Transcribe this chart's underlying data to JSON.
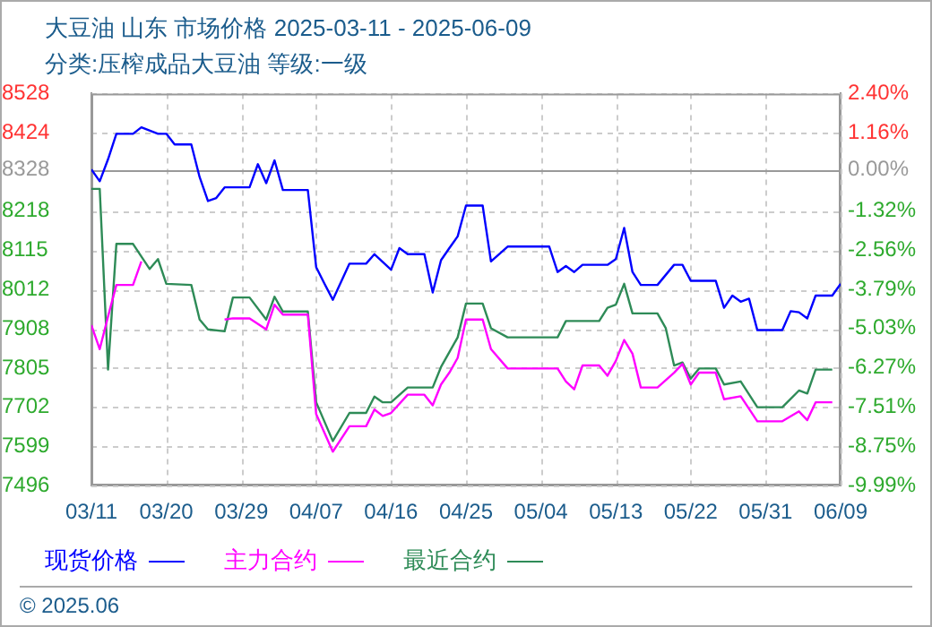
{
  "chart_data": {
    "type": "line",
    "title": "大豆油 山东 市场价格 2025-03-11 - 2025-06-09",
    "subtitle": "分类:压榨成品大豆油 等级:一级",
    "xlim": [
      "2025-03-11",
      "2025-06-09"
    ],
    "xticks": [
      {
        "value": "2025-03-11",
        "label": "03/11"
      },
      {
        "value": "2025-03-20",
        "label": "03/20"
      },
      {
        "value": "2025-03-29",
        "label": "03/29"
      },
      {
        "value": "2025-04-07",
        "label": "04/07"
      },
      {
        "value": "2025-04-16",
        "label": "04/16"
      },
      {
        "value": "2025-04-25",
        "label": "04/25"
      },
      {
        "value": "2025-05-04",
        "label": "05/04"
      },
      {
        "value": "2025-05-13",
        "label": "05/13"
      },
      {
        "value": "2025-05-22",
        "label": "05/22"
      },
      {
        "value": "2025-05-31",
        "label": "05/31"
      },
      {
        "value": "2025-06-09",
        "label": "06/09"
      }
    ],
    "ylim": [
      7496,
      8528
    ],
    "yticks": [
      7496,
      7599,
      7702,
      7805,
      7908,
      8012,
      8115,
      8218,
      8328,
      8424,
      8528
    ],
    "y2lim": [
      -9.99,
      2.4
    ],
    "y2ticks": [
      {
        "value": -9.99,
        "label": "-9.99%"
      },
      {
        "value": -8.75,
        "label": "-8.75%"
      },
      {
        "value": -7.51,
        "label": "-7.51%"
      },
      {
        "value": -6.27,
        "label": "-6.27%"
      },
      {
        "value": -5.03,
        "label": "-5.03%"
      },
      {
        "value": -3.79,
        "label": "-3.79%"
      },
      {
        "value": -2.56,
        "label": "-2.56%"
      },
      {
        "value": -1.32,
        "label": "-1.32%"
      },
      {
        "value": 0,
        "label": "0.00%"
      },
      {
        "value": 1.16,
        "label": "1.16%"
      },
      {
        "value": 2.4,
        "label": "2.40%"
      }
    ],
    "grid": true,
    "legend": "bottom left",
    "marker": "none",
    "ref_lines": [
      {
        "axis": "y",
        "value": 8328,
        "color": "#999999"
      }
    ],
    "annotations": [
      "© 2025.06"
    ],
    "series": [
      {
        "name": "现货价格",
        "color": "#0000ff",
        "x": [
          "2025-03-11",
          "2025-03-12",
          "2025-03-13",
          "2025-03-14",
          "2025-03-16",
          "2025-03-17",
          "2025-03-19",
          "2025-03-20",
          "2025-03-21",
          "2025-03-23",
          "2025-03-24",
          "2025-03-25",
          "2025-03-26",
          "2025-03-27",
          "2025-03-30",
          "2025-03-31",
          "2025-04-01",
          "2025-04-02",
          "2025-04-03",
          "2025-04-06",
          "2025-04-07",
          "2025-04-08",
          "2025-04-09",
          "2025-04-11",
          "2025-04-13",
          "2025-04-14",
          "2025-04-16",
          "2025-04-17",
          "2025-04-18",
          "2025-04-20",
          "2025-04-21",
          "2025-04-22",
          "2025-04-23",
          "2025-04-24",
          "2025-04-25",
          "2025-04-27",
          "2025-04-28",
          "2025-04-30",
          "2025-05-05",
          "2025-05-06",
          "2025-05-07",
          "2025-05-08",
          "2025-05-09",
          "2025-05-12",
          "2025-05-13",
          "2025-05-14",
          "2025-05-15",
          "2025-05-16",
          "2025-05-18",
          "2025-05-20",
          "2025-05-21",
          "2025-05-22",
          "2025-05-25",
          "2025-05-26",
          "2025-05-27",
          "2025-05-28",
          "2025-05-29",
          "2025-05-30",
          "2025-06-02",
          "2025-06-03",
          "2025-06-04",
          "2025-06-05",
          "2025-06-06",
          "2025-06-08",
          "2025-06-09"
        ],
        "values": [
          8328,
          8297,
          8355,
          8422,
          8422,
          8439,
          8422,
          8422,
          8394,
          8394,
          8308,
          8245,
          8253,
          8281,
          8281,
          8342,
          8292,
          8352,
          8274,
          8274,
          8071,
          8027,
          7985,
          8080,
          8080,
          8105,
          8064,
          8121,
          8105,
          8105,
          8004,
          8089,
          8121,
          8152,
          8233,
          8233,
          8086,
          8125,
          8125,
          8058,
          8074,
          8058,
          8077,
          8077,
          8092,
          8174,
          8058,
          8024,
          8024,
          8077,
          8077,
          8035,
          8035,
          7964,
          7996,
          7980,
          7988,
          7905,
          7905,
          7955,
          7952,
          7936,
          7996,
          7996,
          8027
        ]
      },
      {
        "name": "主力合约",
        "color": "#ff00ff",
        "x": [
          "2025-03-11",
          "2025-03-12",
          "2025-03-13",
          "2025-03-14",
          "2025-03-16",
          "2025-03-17",
          "2025-03-19",
          "2025-03-20",
          "2025-03-23",
          "2025-03-24",
          "2025-03-25",
          "2025-03-26",
          "2025-03-27",
          "2025-03-28",
          "2025-03-30",
          "2025-04-01",
          "2025-04-02",
          "2025-04-03",
          "2025-04-06",
          "2025-04-07",
          "2025-04-09",
          "2025-04-11",
          "2025-04-13",
          "2025-04-14",
          "2025-04-15",
          "2025-04-16",
          "2025-04-18",
          "2025-04-20",
          "2025-04-21",
          "2025-04-22",
          "2025-04-23",
          "2025-04-24",
          "2025-04-25",
          "2025-04-27",
          "2025-04-28",
          "2025-04-30",
          "2025-05-06",
          "2025-05-07",
          "2025-05-08",
          "2025-05-09",
          "2025-05-11",
          "2025-05-12",
          "2025-05-13",
          "2025-05-14",
          "2025-05-15",
          "2025-05-16",
          "2025-05-18",
          "2025-05-20",
          "2025-05-21",
          "2025-05-22",
          "2025-05-23",
          "2025-05-25",
          "2025-05-26",
          "2025-05-28",
          "2025-05-30",
          "2025-06-02",
          "2025-06-04",
          "2025-06-05",
          "2025-06-06",
          "2025-06-08"
        ],
        "values": [
          7918,
          7855,
          7941,
          8024,
          8024,
          8086,
          null,
          null,
          null,
          null,
          null,
          null,
          7933,
          7936,
          7936,
          7907,
          7972,
          7946,
          7946,
          7684,
          7585,
          7652,
          7652,
          7696,
          7679,
          7687,
          7735,
          7735,
          7707,
          7762,
          7793,
          7832,
          7933,
          7933,
          7855,
          7804,
          7804,
          7770,
          7749,
          7812,
          7812,
          7785,
          7824,
          7879,
          7843,
          7754,
          7754,
          7793,
          7816,
          7762,
          7793,
          7793,
          7723,
          7731,
          7665,
          7665,
          7691,
          7668,
          7715,
          7715
        ]
      },
      {
        "name": "最近合约",
        "color": "#2e8b57",
        "x": [
          "2025-03-11",
          "2025-03-12",
          "2025-03-13",
          "2025-03-14",
          "2025-03-16",
          "2025-03-18",
          "2025-03-19",
          "2025-03-20",
          "2025-03-23",
          "2025-03-24",
          "2025-03-25",
          "2025-03-27",
          "2025-03-28",
          "2025-03-30",
          "2025-04-01",
          "2025-04-02",
          "2025-04-03",
          "2025-04-06",
          "2025-04-07",
          "2025-04-09",
          "2025-04-11",
          "2025-04-13",
          "2025-04-14",
          "2025-04-15",
          "2025-04-16",
          "2025-04-18",
          "2025-04-21",
          "2025-04-22",
          "2025-04-23",
          "2025-04-24",
          "2025-04-25",
          "2025-04-27",
          "2025-04-28",
          "2025-04-30",
          "2025-05-06",
          "2025-05-07",
          "2025-05-11",
          "2025-05-12",
          "2025-05-13",
          "2025-05-14",
          "2025-05-15",
          "2025-05-18",
          "2025-05-19",
          "2025-05-20",
          "2025-05-21",
          "2025-05-22",
          "2025-05-23",
          "2025-05-25",
          "2025-05-26",
          "2025-05-28",
          "2025-05-30",
          "2025-06-02",
          "2025-06-04",
          "2025-06-05",
          "2025-06-06",
          "2025-06-08"
        ],
        "values": [
          8277,
          8277,
          7801,
          8132,
          8132,
          8066,
          8092,
          8027,
          8024,
          7933,
          7907,
          7902,
          7991,
          7991,
          7933,
          7993,
          7954,
          7954,
          7715,
          7613,
          7687,
          7687,
          7730,
          7715,
          7715,
          7754,
          7754,
          7808,
          7847,
          7886,
          7975,
          7975,
          7910,
          7886,
          7886,
          7929,
          7929,
          7964,
          7972,
          8027,
          7949,
          7949,
          7910,
          7812,
          7820,
          7777,
          7804,
          7804,
          7762,
          7770,
          7702,
          7702,
          7746,
          7738,
          7801,
          7801
        ]
      }
    ]
  }
}
